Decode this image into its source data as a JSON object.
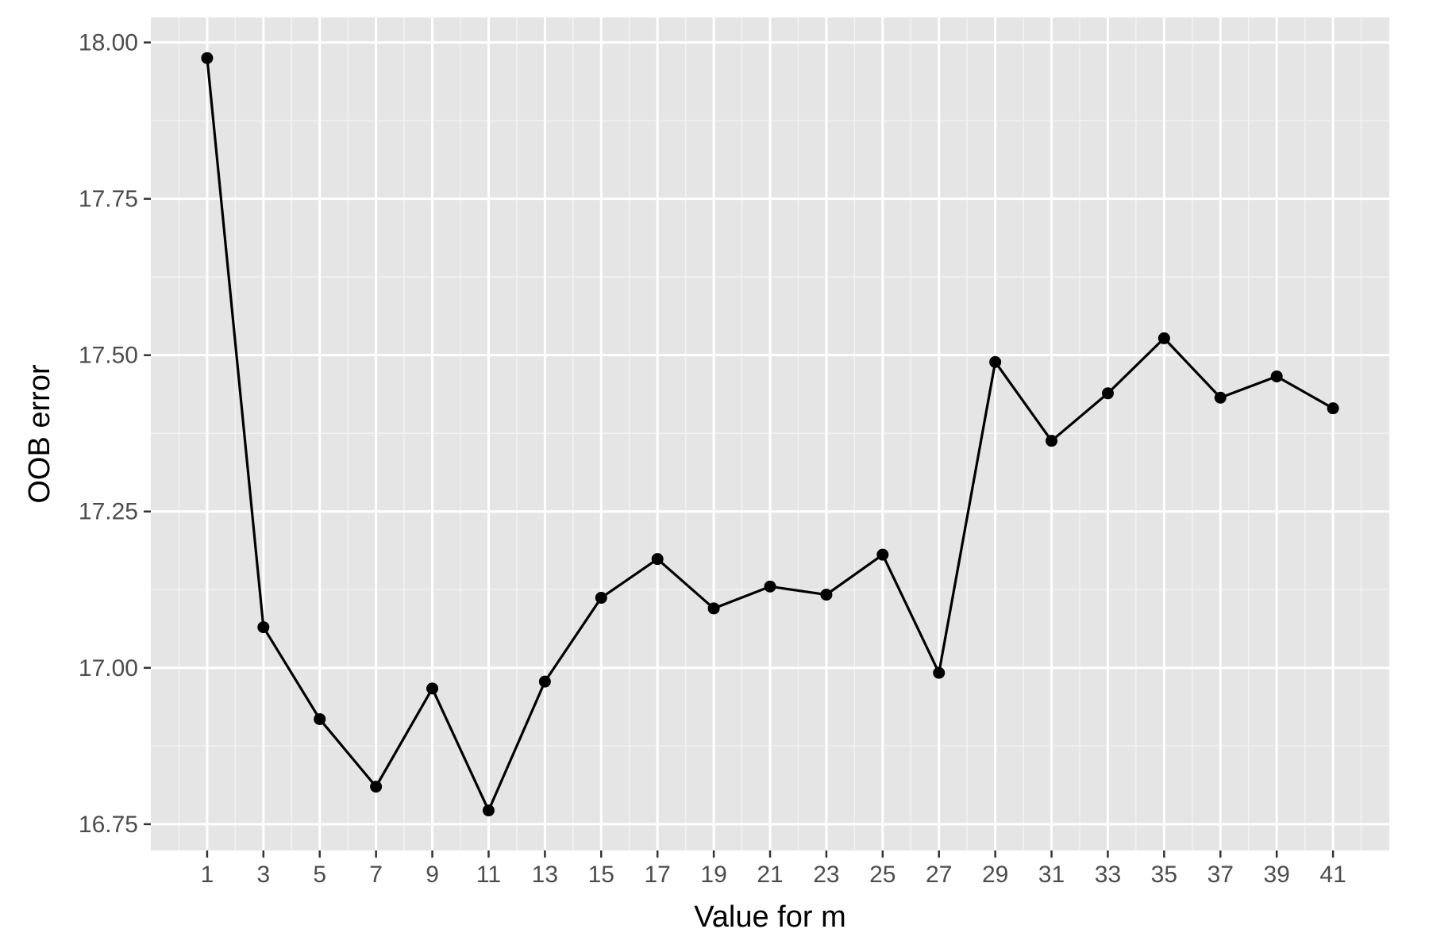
{
  "chart_data": {
    "type": "line",
    "title": "",
    "xlabel": "Value for m",
    "ylabel": "OOB error",
    "x": [
      1,
      3,
      5,
      7,
      9,
      11,
      13,
      15,
      17,
      19,
      21,
      23,
      25,
      27,
      29,
      31,
      33,
      35,
      37,
      39,
      41
    ],
    "series": [
      {
        "values": [
          17.975,
          17.065,
          16.918,
          16.81,
          16.967,
          16.772,
          16.978,
          17.112,
          17.174,
          17.095,
          17.13,
          17.117,
          17.181,
          16.992,
          17.489,
          17.363,
          17.439,
          17.527,
          17.432,
          17.466,
          17.415
        ],
        "markers": true
      }
    ],
    "x_ticks": [
      "1",
      "3",
      "5",
      "7",
      "9",
      "11",
      "13",
      "15",
      "17",
      "19",
      "21",
      "23",
      "25",
      "27",
      "29",
      "31",
      "33",
      "35",
      "37",
      "39",
      "41"
    ],
    "y_ticks": [
      16.75,
      17.0,
      17.25,
      17.5,
      17.75,
      18.0
    ],
    "y_tick_labels": [
      "16.75",
      "17.00",
      "17.25",
      "17.50",
      "17.75",
      "18.00"
    ],
    "xlim": [
      -1,
      43
    ],
    "ylim": [
      16.708,
      18.04
    ],
    "grid": true,
    "legend": "none",
    "colors": {
      "panel_background": "#e5e5e5",
      "grid_major": "#ffffff",
      "grid_minor": "#f2f2f2",
      "line": "#000000",
      "point": "#000000",
      "tick_label": "#4d4d4d",
      "tick_mark": "#333333"
    }
  }
}
